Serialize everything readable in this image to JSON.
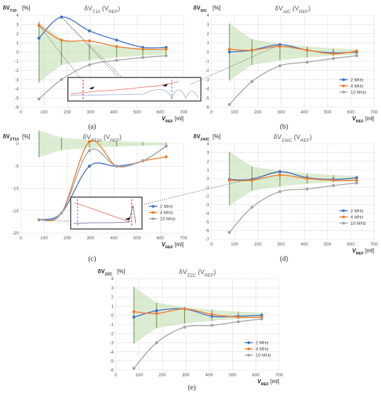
{
  "colors": {
    "s2": "#4472C4",
    "s4": "#ED7D31",
    "s10": "#A5A5A5",
    "band": "#C5E0B4",
    "err": "#548235"
  },
  "chart_data": [
    {
      "panel": "a",
      "type": "line",
      "title": "δV_T10 (V_REF)",
      "ylabel": "δV_T10 [%]",
      "ylabel_unit": "[%]",
      "xlabel": "V_REF [ml]",
      "caption": "(a)",
      "xlim": [
        0,
        700
      ],
      "ylim": [
        -6,
        4
      ],
      "ystep": 1,
      "xstep": 100,
      "grid": true,
      "legend": "right",
      "x": [
        78,
        175,
        295,
        412,
        525,
        625
      ],
      "series": [
        {
          "name": "2 MHz",
          "values": [
            1.5,
            3.8,
            2.3,
            1.3,
            0.5,
            0.5
          ]
        },
        {
          "name": "4 MHz",
          "values": [
            2.9,
            1.3,
            1.2,
            0.6,
            0.3,
            0.3
          ]
        },
        {
          "name": "10 MHz",
          "values": [
            -5.1,
            -3.0,
            -1.4,
            -0.9,
            -0.6,
            -0.4
          ]
        }
      ],
      "band_upper": [
        3.3,
        1.4,
        0.9,
        0.6,
        0.4,
        0.3
      ],
      "band_lower": [
        -3.3,
        -1.4,
        -0.9,
        -0.6,
        -0.4,
        -0.3
      ]
    },
    {
      "panel": "b",
      "type": "line",
      "title": "δV_AIC (V_REF)",
      "ylabel": "δV_AIC [%]",
      "ylabel_unit": "[%]",
      "xlabel": "V_REF [ml]",
      "caption": "(b)",
      "xlim": [
        0,
        700
      ],
      "ylim": [
        -6,
        4
      ],
      "ystep": 1,
      "xstep": 100,
      "grid": true,
      "legend": "right",
      "x": [
        78,
        175,
        295,
        412,
        525,
        625
      ],
      "series": [
        {
          "name": "2 MHz",
          "values": [
            0.0,
            0.2,
            0.8,
            0.2,
            -0.1,
            0.0
          ]
        },
        {
          "name": "4 MHz",
          "values": [
            0.3,
            0.2,
            0.6,
            0.2,
            -0.2,
            0.1
          ]
        },
        {
          "name": "10 MHz",
          "values": [
            -5.7,
            -3.2,
            -1.5,
            -1.1,
            -0.7,
            -0.4
          ]
        }
      ],
      "band_upper": [
        3.1,
        1.4,
        0.9,
        0.6,
        0.4,
        0.3
      ],
      "band_lower": [
        -3.1,
        -1.4,
        -0.9,
        -0.6,
        -0.4,
        -0.3
      ]
    },
    {
      "panel": "c",
      "type": "line",
      "title": "δV_ZT10 (V_REF)",
      "ylabel": "δV_ZT10 [%]",
      "ylabel_unit": "[%]",
      "xlabel": "V_REF [ml]",
      "caption": "(c)",
      "xlim": [
        0,
        700
      ],
      "ylim": [
        -20,
        0
      ],
      "ystep": 5,
      "xstep": 100,
      "grid": true,
      "legend": "right",
      "x": [
        78,
        175,
        295,
        412,
        525,
        625
      ],
      "series": [
        {
          "name": "2 MHz",
          "values": [
            -17.0,
            -15.5,
            -5.0,
            -5.0,
            -3.8,
            -0.5
          ]
        },
        {
          "name": "4 MHz",
          "values": [
            -17.0,
            -15.5,
            0.5,
            -5.0,
            -3.8,
            -2.9
          ]
        },
        {
          "name": "10 MHz",
          "values": [
            -17.0,
            -15.5,
            -1.5,
            -5.0,
            -3.8,
            -0.5
          ]
        }
      ],
      "band_upper": [
        3.0,
        1.4,
        0.9,
        0.6,
        0.4,
        0.3
      ],
      "band_lower": [
        -3.0,
        -1.4,
        -0.9,
        -0.6,
        -0.4,
        -0.3
      ]
    },
    {
      "panel": "d",
      "type": "line",
      "title": "δV_ZAIC (V_REF)",
      "ylabel": "δV_ZAIC [%]",
      "ylabel_unit": "[%]",
      "xlabel": "V_REF [ml]",
      "caption": "(d)",
      "xlim": [
        0,
        700
      ],
      "ylim": [
        -7,
        4
      ],
      "ystep": 1,
      "xstep": 100,
      "grid": true,
      "legend": "right",
      "x": [
        78,
        175,
        295,
        412,
        525,
        625
      ],
      "series": [
        {
          "name": "2 MHz",
          "values": [
            -0.1,
            -0.1,
            0.8,
            0.1,
            -0.1,
            0.1
          ]
        },
        {
          "name": "4 MHz",
          "values": [
            -0.2,
            -0.2,
            0.4,
            0.0,
            -0.2,
            -0.2
          ]
        },
        {
          "name": "10 MHz",
          "values": [
            -6.2,
            -3.3,
            -1.5,
            -1.2,
            -0.8,
            -0.5
          ]
        }
      ],
      "band_upper": [
        3.1,
        1.4,
        0.9,
        0.6,
        0.4,
        0.3
      ],
      "band_lower": [
        -3.1,
        -1.4,
        -0.9,
        -0.6,
        -0.4,
        -0.3
      ]
    },
    {
      "panel": "e",
      "type": "line",
      "title": "δV_ZZC (V_REF)",
      "ylabel": "δV_ZZC [%]",
      "ylabel_unit": "[%]",
      "xlabel": "V_REF [ml]",
      "caption": "(e)",
      "xlim": [
        0,
        700
      ],
      "ylim": [
        -6,
        4
      ],
      "ystep": 1,
      "xstep": 100,
      "grid": true,
      "legend": "right",
      "x": [
        78,
        175,
        295,
        412,
        525,
        625
      ],
      "series": [
        {
          "name": "2 MHz",
          "values": [
            -0.2,
            0.5,
            0.7,
            -0.1,
            -0.1,
            0.0
          ]
        },
        {
          "name": "4 MHz",
          "values": [
            0.4,
            0.2,
            0.7,
            0.1,
            -0.2,
            -0.2
          ]
        },
        {
          "name": "10 MHz",
          "values": [
            -5.8,
            -3.0,
            -1.3,
            -1.1,
            -0.7,
            -0.4
          ]
        }
      ],
      "band_upper": [
        3.1,
        1.4,
        0.9,
        0.6,
        0.4,
        0.3
      ],
      "band_lower": [
        -3.1,
        -1.4,
        -0.9,
        -0.6,
        -0.4,
        -0.3
      ]
    }
  ]
}
